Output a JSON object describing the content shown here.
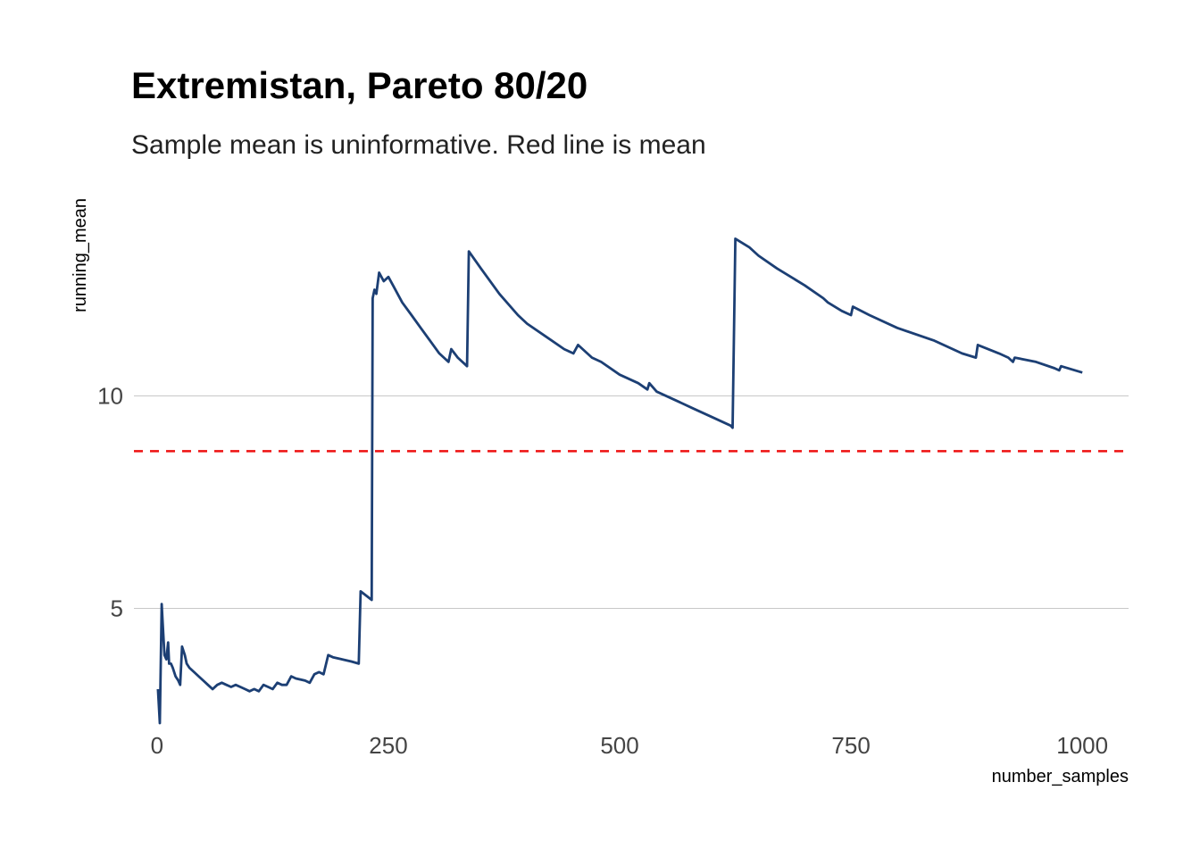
{
  "chart_data": {
    "type": "line",
    "title": "Extremistan, Pareto 80/20",
    "subtitle": "Sample mean is uninformative. Red line is mean",
    "xlabel": "number_samples",
    "ylabel": "running_mean",
    "xlim": [
      -25,
      1050
    ],
    "ylim": [
      2.3,
      14.8
    ],
    "x_ticks": [
      0,
      250,
      500,
      750,
      1000
    ],
    "y_ticks": [
      5,
      10
    ],
    "grid": "horizontal",
    "colors": {
      "line": "#1c3f74",
      "reference": "#ee1111",
      "grid": "#c8c8c8"
    },
    "reference_line": {
      "y": 8.7,
      "style": "dashed"
    },
    "series": [
      {
        "x": [
          1,
          3,
          5,
          6,
          8,
          10,
          12,
          13,
          15,
          17,
          20,
          23,
          25,
          27,
          30,
          32,
          35,
          40,
          45,
          50,
          55,
          60,
          65,
          70,
          75,
          80,
          85,
          90,
          95,
          100,
          105,
          110,
          115,
          120,
          125,
          130,
          135,
          140,
          145,
          150,
          160,
          165,
          170,
          175,
          180,
          185,
          190,
          200,
          210,
          218,
          220,
          232,
          233,
          235,
          237,
          240,
          245,
          250,
          255,
          265,
          275,
          285,
          295,
          305,
          315,
          318,
          325,
          335,
          337,
          350,
          370,
          390,
          400,
          420,
          440,
          450,
          455,
          470,
          480,
          500,
          520,
          530,
          532,
          540,
          560,
          580,
          600,
          620,
          622,
          625,
          640,
          650,
          670,
          700,
          720,
          725,
          740,
          750,
          752,
          770,
          800,
          840,
          870,
          885,
          887,
          910,
          920,
          925,
          927,
          950,
          970,
          975,
          977,
          1000
        ],
        "y": [
          3.1,
          2.3,
          5.1,
          4.7,
          3.9,
          3.8,
          4.2,
          3.7,
          3.7,
          3.6,
          3.4,
          3.3,
          3.2,
          4.1,
          3.9,
          3.7,
          3.6,
          3.5,
          3.4,
          3.3,
          3.2,
          3.1,
          3.2,
          3.25,
          3.2,
          3.15,
          3.2,
          3.15,
          3.1,
          3.05,
          3.1,
          3.05,
          3.2,
          3.15,
          3.1,
          3.25,
          3.2,
          3.2,
          3.4,
          3.35,
          3.3,
          3.25,
          3.45,
          3.5,
          3.45,
          3.9,
          3.85,
          3.8,
          3.75,
          3.7,
          5.4,
          5.2,
          12.3,
          12.5,
          12.4,
          12.9,
          12.7,
          12.8,
          12.6,
          12.2,
          11.9,
          11.6,
          11.3,
          11.0,
          10.8,
          11.1,
          10.9,
          10.7,
          13.4,
          13.0,
          12.4,
          11.9,
          11.7,
          11.4,
          11.1,
          11.0,
          11.2,
          10.9,
          10.8,
          10.5,
          10.3,
          10.15,
          10.3,
          10.1,
          9.9,
          9.7,
          9.5,
          9.3,
          9.25,
          13.7,
          13.5,
          13.3,
          13.0,
          12.6,
          12.3,
          12.2,
          12.0,
          11.9,
          12.1,
          11.9,
          11.6,
          11.3,
          11.0,
          10.9,
          11.2,
          11.0,
          10.9,
          10.8,
          10.9,
          10.8,
          10.65,
          10.6,
          10.7,
          10.55
        ]
      }
    ]
  }
}
